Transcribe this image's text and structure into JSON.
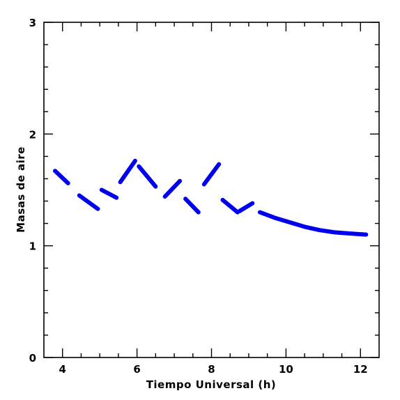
{
  "chart_data": {
    "type": "line",
    "title": "",
    "xlabel": "Tiempo Universal (h)",
    "ylabel": "Masas de aire",
    "xlim": [
      3.5,
      12.5
    ],
    "ylim": [
      0,
      3
    ],
    "x_ticks": [
      4,
      6,
      8,
      10,
      12
    ],
    "y_ticks": [
      0,
      1,
      2,
      3
    ],
    "x_tick_labels": [
      "4",
      "6",
      "8",
      "10",
      "12"
    ],
    "y_tick_labels": [
      "0",
      "1",
      "2",
      "3"
    ],
    "grid": false,
    "legend": "none",
    "series_color": "#0000ee",
    "segments": [
      {
        "x": [
          3.8,
          4.15
        ],
        "y": [
          1.67,
          1.56
        ]
      },
      {
        "x": [
          4.45,
          4.95
        ],
        "y": [
          1.45,
          1.33
        ]
      },
      {
        "x": [
          5.05,
          5.45
        ],
        "y": [
          1.5,
          1.43
        ]
      },
      {
        "x": [
          5.55,
          5.95
        ],
        "y": [
          1.57,
          1.76
        ]
      },
      {
        "x": [
          6.05,
          6.5
        ],
        "y": [
          1.71,
          1.53
        ]
      },
      {
        "x": [
          6.75,
          7.15
        ],
        "y": [
          1.44,
          1.58
        ]
      },
      {
        "x": [
          7.3,
          7.65
        ],
        "y": [
          1.42,
          1.3
        ]
      },
      {
        "x": [
          7.8,
          8.2
        ],
        "y": [
          1.55,
          1.73
        ]
      },
      {
        "x": [
          8.3,
          8.7
        ],
        "y": [
          1.41,
          1.3
        ]
      },
      {
        "x": [
          8.75,
          9.1
        ],
        "y": [
          1.31,
          1.38
        ]
      },
      {
        "x": [
          9.3,
          9.7,
          10.1,
          10.5,
          10.9,
          11.3,
          11.7,
          12.15
        ],
        "y": [
          1.3,
          1.25,
          1.21,
          1.17,
          1.14,
          1.12,
          1.11,
          1.1
        ]
      }
    ]
  }
}
